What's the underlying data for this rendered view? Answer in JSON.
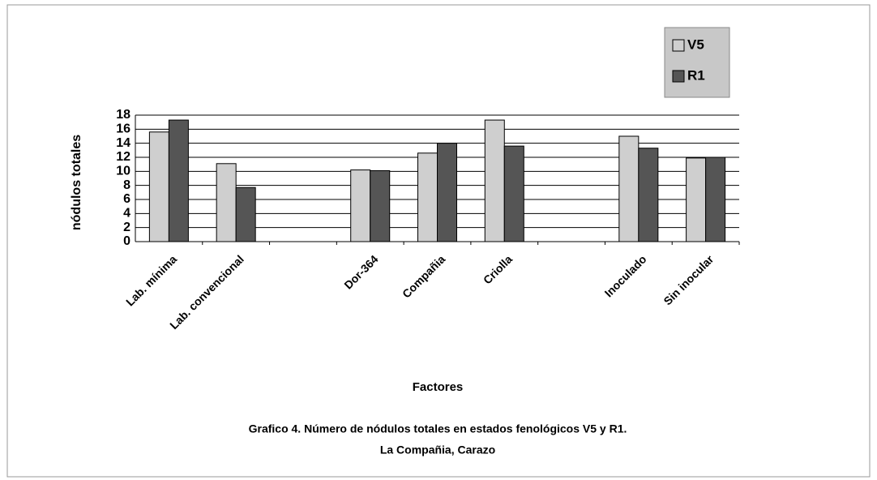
{
  "chart_data": {
    "type": "bar",
    "title": "Grafico 4. Número de nódulos totales en  estados fenológicos V5 y R1.",
    "subtitle": "La Compañia, Carazo",
    "x_label": "Factores",
    "y_label": "nódulos totales",
    "categories": [
      "Lab. mínima",
      "Lab. convencional",
      null,
      "Dor-364",
      "Compañia",
      "Criolla",
      null,
      "Inoculado",
      "Sin inocular"
    ],
    "series": [
      {
        "name": "V5",
        "color": "#cfcfcf",
        "values": [
          15.6,
          11.1,
          null,
          10.2,
          12.6,
          17.3,
          null,
          15.0,
          11.9
        ]
      },
      {
        "name": "R1",
        "color": "#555555",
        "values": [
          17.3,
          7.7,
          null,
          10.1,
          14.0,
          13.6,
          null,
          13.3,
          12.0
        ]
      }
    ],
    "ylim": [
      0,
      18
    ],
    "yticks": [
      0,
      2,
      4,
      6,
      8,
      10,
      12,
      14,
      16,
      18
    ],
    "grid": true,
    "legend": "top-right"
  }
}
